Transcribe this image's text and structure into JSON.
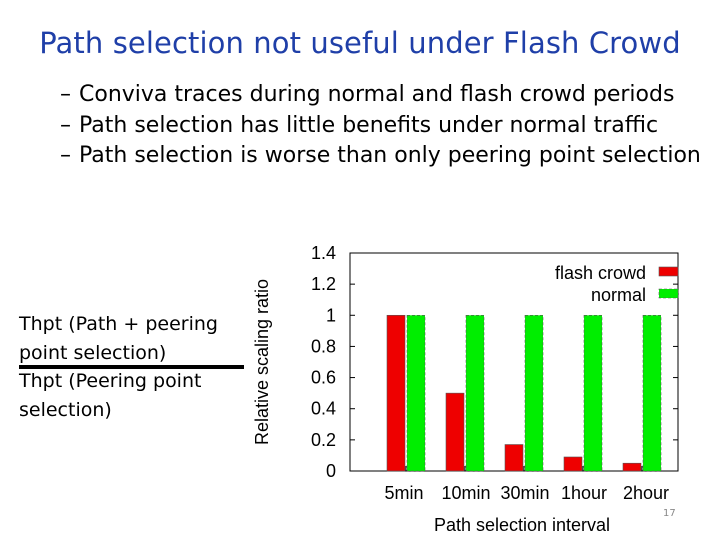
{
  "slide": {
    "title": "Path selection not useful under Flash Crowd",
    "bullets": [
      "Conviva traces during normal and flash crowd periods",
      "Path selection has little benefits under normal traffic",
      "Path selection is worse than only peering point selection"
    ],
    "bullet_marker": "–",
    "side_note": {
      "numerator": "Thpt (Path + peering point selection)",
      "denominator": "Thpt (Peering point selection)"
    },
    "page_number": "17"
  },
  "colors": {
    "title": "#1f3fa8",
    "flash_crowd": "#ee0000",
    "normal": "#00ee00"
  },
  "chart_data": {
    "type": "bar",
    "categories": [
      "5min",
      "10min",
      "30min",
      "1hour",
      "2hour"
    ],
    "series": [
      {
        "name": "flash crowd",
        "values": [
          1.0,
          0.5,
          0.17,
          0.09,
          0.05
        ],
        "color": "#ee0000"
      },
      {
        "name": "normal",
        "values": [
          1.0,
          1.0,
          1.0,
          1.0,
          1.0
        ],
        "color": "#00ee00"
      }
    ],
    "xlabel": "Path selection interval",
    "ylabel": "Relative scaling ratio",
    "ylim": [
      0,
      1.4
    ],
    "yticks": [
      "0",
      "0.2",
      "0.4",
      "0.6",
      "0.8",
      "1",
      "1.2",
      "1.4"
    ],
    "legend": "top-right",
    "grid": false
  }
}
